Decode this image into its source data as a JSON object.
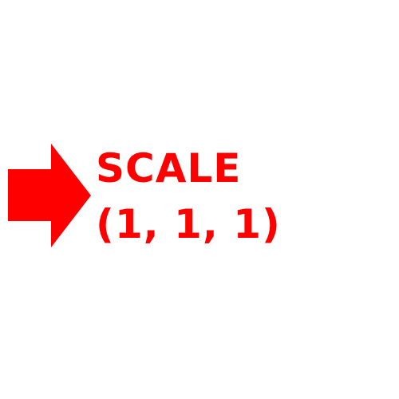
{
  "colors": {
    "accent": "#ff0000",
    "background": "#ffffff"
  },
  "icon": "right-arrow-icon",
  "label": {
    "title": "SCALE",
    "value": "(1, 1, 1)"
  }
}
